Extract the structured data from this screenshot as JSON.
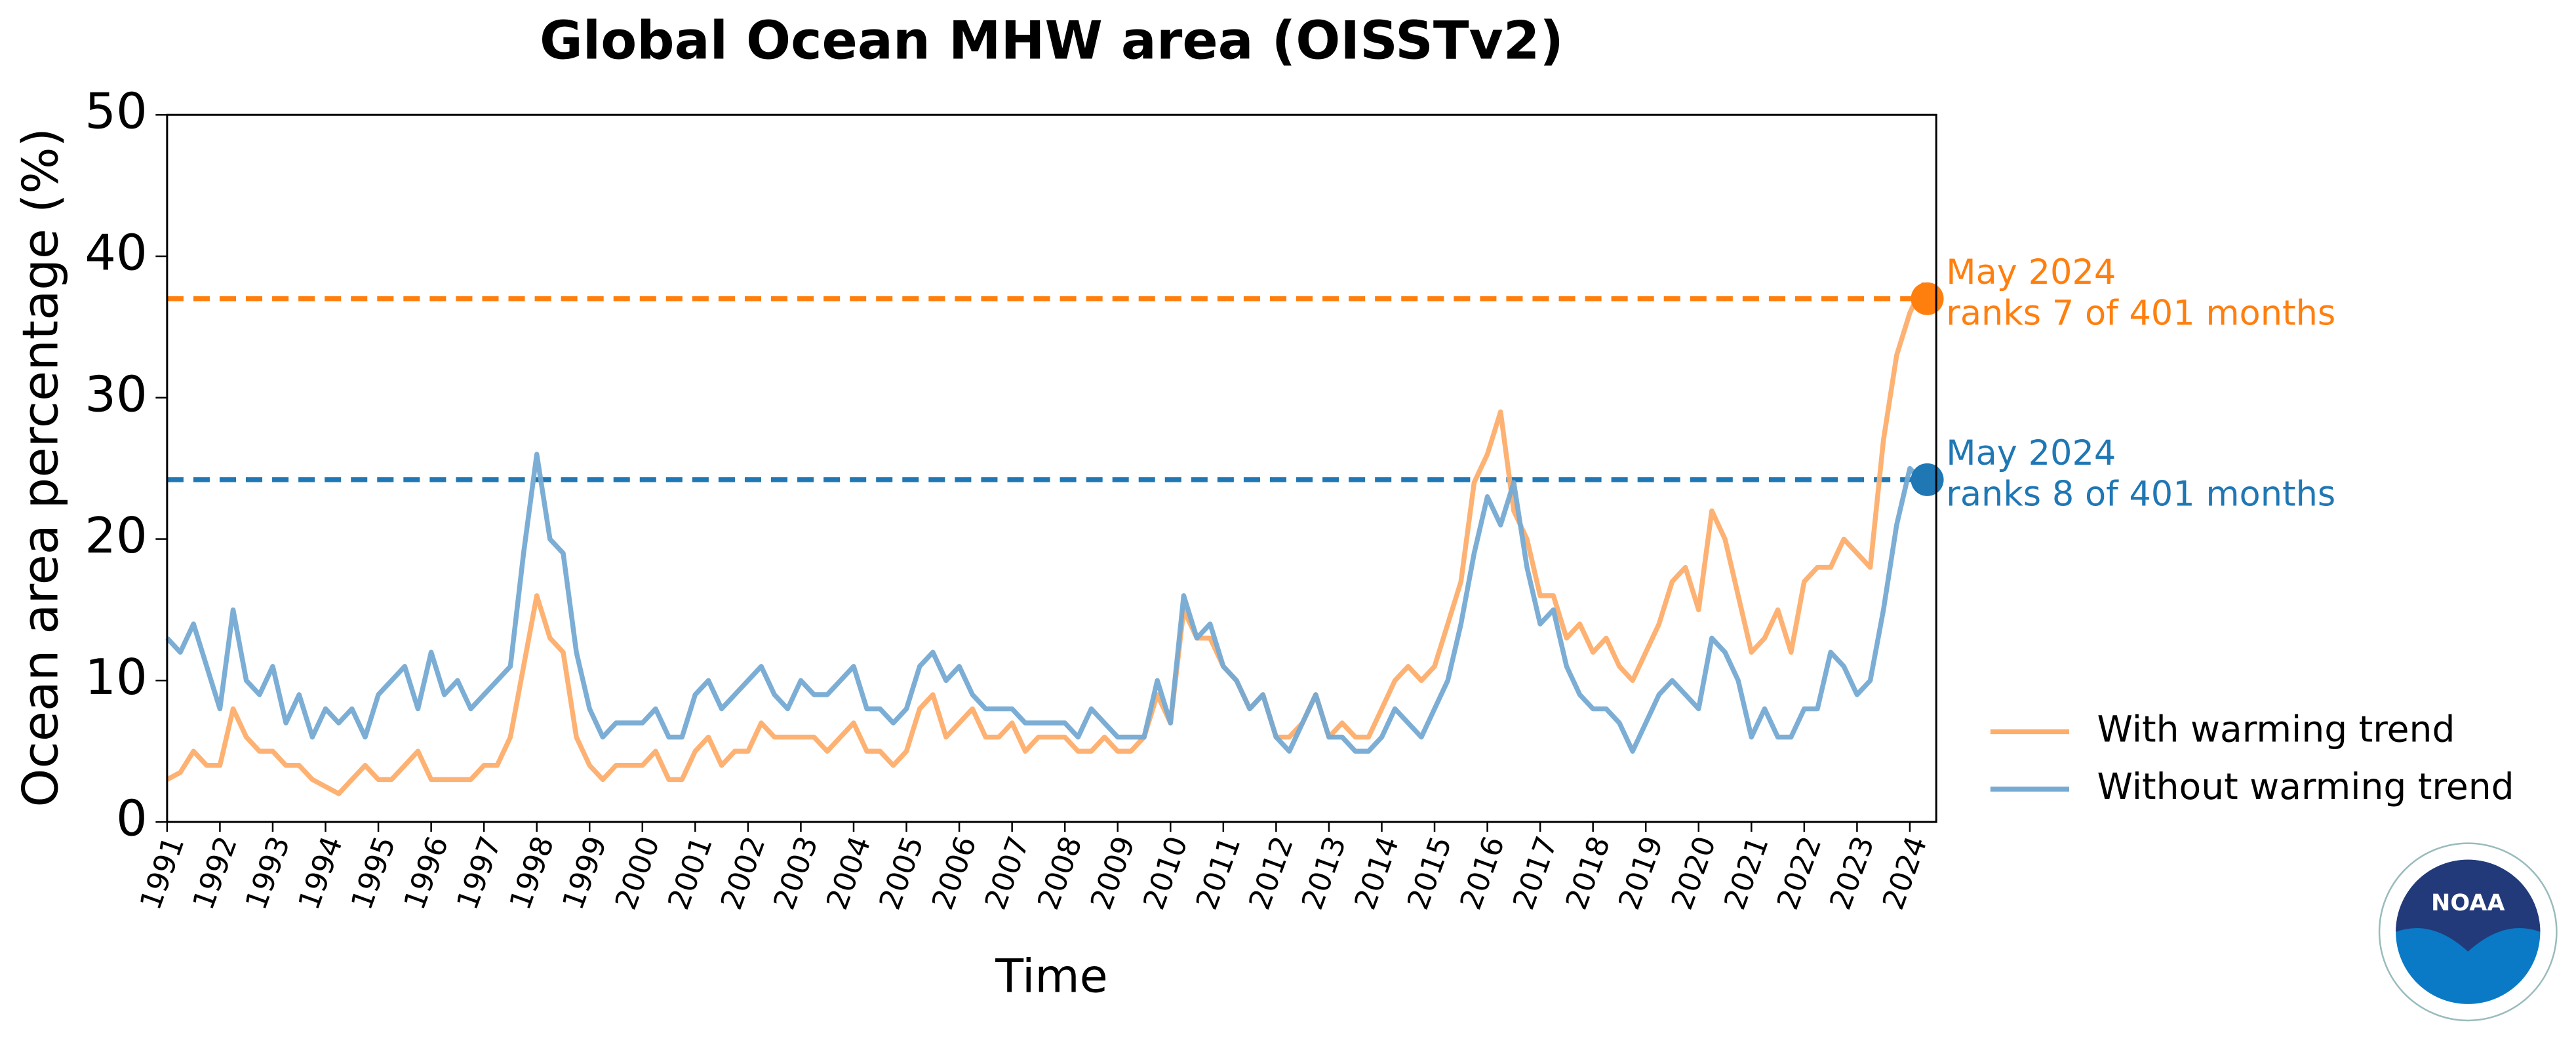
{
  "chart_data": {
    "type": "line",
    "title": "Global Ocean MHW area (OISSTv2)",
    "x_label": "Time",
    "y_label": "Ocean area percentage (%)",
    "xlim": [
      1991,
      2024.5
    ],
    "ylim": [
      0,
      50
    ],
    "yticks": [
      0,
      10,
      20,
      30,
      40,
      50
    ],
    "xticks": [
      1991,
      1992,
      1993,
      1994,
      1995,
      1996,
      1997,
      1998,
      1999,
      2000,
      2001,
      2002,
      2003,
      2004,
      2005,
      2006,
      2007,
      2008,
      2009,
      2010,
      2011,
      2012,
      2013,
      2014,
      2015,
      2016,
      2017,
      2018,
      2019,
      2020,
      2021,
      2022,
      2023,
      2024
    ],
    "x": [
      1991,
      1991.25,
      1991.5,
      1991.75,
      1992,
      1992.25,
      1992.5,
      1992.75,
      1993,
      1993.25,
      1993.5,
      1993.75,
      1994,
      1994.25,
      1994.5,
      1994.75,
      1995,
      1995.25,
      1995.5,
      1995.75,
      1996,
      1996.25,
      1996.5,
      1996.75,
      1997,
      1997.25,
      1997.5,
      1997.75,
      1998,
      1998.25,
      1998.5,
      1998.75,
      1999,
      1999.25,
      1999.5,
      1999.75,
      2000,
      2000.25,
      2000.5,
      2000.75,
      2001,
      2001.25,
      2001.5,
      2001.75,
      2002,
      2002.25,
      2002.5,
      2002.75,
      2003,
      2003.25,
      2003.5,
      2003.75,
      2004,
      2004.25,
      2004.5,
      2004.75,
      2005,
      2005.25,
      2005.5,
      2005.75,
      2006,
      2006.25,
      2006.5,
      2006.75,
      2007,
      2007.25,
      2007.5,
      2007.75,
      2008,
      2008.25,
      2008.5,
      2008.75,
      2009,
      2009.25,
      2009.5,
      2009.75,
      2010,
      2010.25,
      2010.5,
      2010.75,
      2011,
      2011.25,
      2011.5,
      2011.75,
      2012,
      2012.25,
      2012.5,
      2012.75,
      2013,
      2013.25,
      2013.5,
      2013.75,
      2014,
      2014.25,
      2014.5,
      2014.75,
      2015,
      2015.25,
      2015.5,
      2015.75,
      2016,
      2016.25,
      2016.5,
      2016.75,
      2017,
      2017.25,
      2017.5,
      2017.75,
      2018,
      2018.25,
      2018.5,
      2018.75,
      2019,
      2019.25,
      2019.5,
      2019.75,
      2020,
      2020.25,
      2020.5,
      2020.75,
      2021,
      2021.25,
      2021.5,
      2021.75,
      2022,
      2022.25,
      2022.5,
      2022.75,
      2023,
      2023.25,
      2023.5,
      2023.75,
      2024,
      2024.25,
      2024.33
    ],
    "series": [
      {
        "name": "With warming trend",
        "color": "#fdae6b",
        "highlight_color": "#ff7f0e",
        "annotation": [
          "May 2024",
          "ranks 7 of 401 months"
        ],
        "values": [
          3,
          3.5,
          5,
          4,
          4,
          8,
          6,
          5,
          5,
          4,
          4,
          3,
          2.5,
          2,
          3,
          4,
          3,
          3,
          4,
          5,
          3,
          3,
          3,
          3,
          4,
          4,
          6,
          11,
          16,
          13,
          12,
          6,
          4,
          3,
          4,
          4,
          4,
          5,
          3,
          3,
          5,
          6,
          4,
          5,
          5,
          7,
          6,
          6,
          6,
          6,
          5,
          6,
          7,
          5,
          5,
          4,
          5,
          8,
          9,
          6,
          7,
          8,
          6,
          6,
          7,
          5,
          6,
          6,
          6,
          5,
          5,
          6,
          5,
          5,
          6,
          9,
          7,
          15,
          13,
          13,
          11,
          10,
          8,
          9,
          6,
          6,
          7,
          9,
          6,
          7,
          6,
          6,
          8,
          10,
          11,
          10,
          11,
          14,
          17,
          24,
          26,
          29,
          22,
          20,
          16,
          16,
          13,
          14,
          12,
          13,
          11,
          10,
          12,
          14,
          17,
          18,
          15,
          22,
          20,
          16,
          12,
          13,
          15,
          12,
          17,
          18,
          18,
          20,
          19,
          18,
          27,
          33,
          36,
          38,
          37
        ]
      },
      {
        "name": "Without warming trend",
        "color": "#75aad3",
        "highlight_color": "#1f77b4",
        "annotation": [
          "May 2024",
          "ranks 8 of 401 months"
        ],
        "values": [
          13,
          12,
          14,
          11,
          8,
          15,
          10,
          9,
          11,
          7,
          9,
          6,
          8,
          7,
          8,
          6,
          9,
          10,
          11,
          8,
          12,
          9,
          10,
          8,
          9,
          10,
          11,
          19,
          26,
          20,
          19,
          12,
          8,
          6,
          7,
          7,
          7,
          8,
          6,
          6,
          9,
          10,
          8,
          9,
          10,
          11,
          9,
          8,
          10,
          9,
          9,
          10,
          11,
          8,
          8,
          7,
          8,
          11,
          12,
          10,
          11,
          9,
          8,
          8,
          8,
          7,
          7,
          7,
          7,
          6,
          8,
          7,
          6,
          6,
          6,
          10,
          7,
          16,
          13,
          14,
          11,
          10,
          8,
          9,
          6,
          5,
          7,
          9,
          6,
          6,
          5,
          5,
          6,
          8,
          7,
          6,
          8,
          10,
          14,
          19,
          23,
          21,
          24,
          18,
          14,
          15,
          11,
          9,
          8,
          8,
          7,
          5,
          7,
          9,
          10,
          9,
          8,
          13,
          12,
          10,
          6,
          8,
          6,
          6,
          8,
          8,
          12,
          11,
          9,
          10,
          15,
          21,
          25,
          24,
          24.2
        ]
      }
    ],
    "legend": "lower right outside",
    "logo_text": "NOAA"
  }
}
